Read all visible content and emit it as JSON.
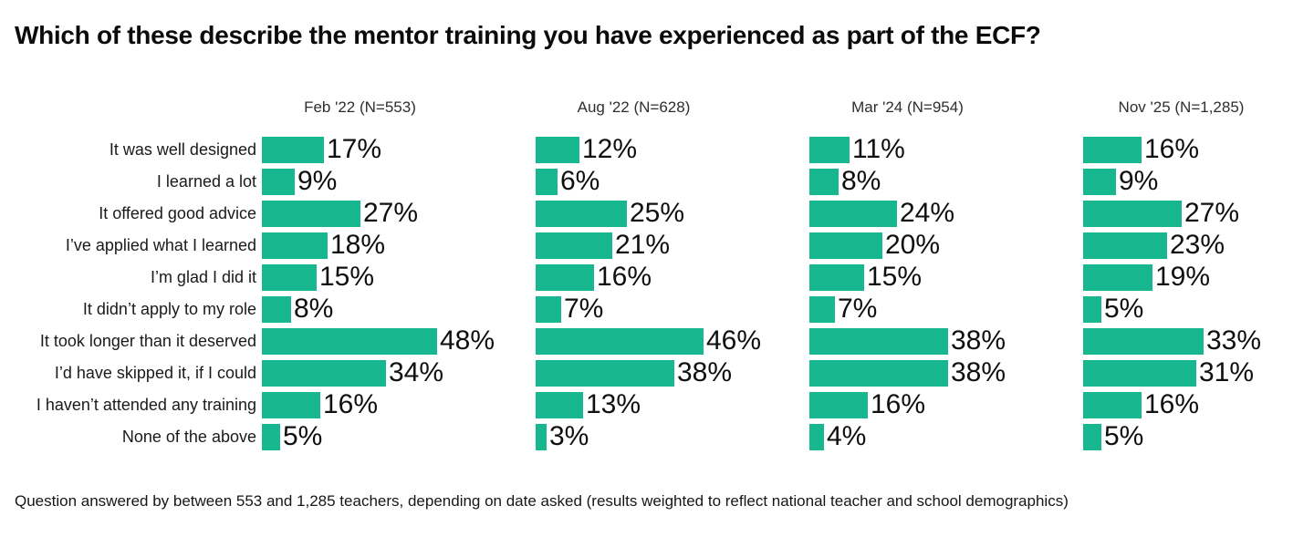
{
  "title": "Which of these describe the mentor training you have experienced as part of the ECF?",
  "footnote": "Question answered by between 553 and 1,285 teachers, depending on date asked (results weighted to reflect national teacher and school demographics)",
  "colors": {
    "bar": "#17B890",
    "title": "#0b0b0b",
    "row_label": "#1a1a1a",
    "series_header": "#2e2e2e",
    "value_label": "#0f0f0f"
  },
  "chart_data": {
    "type": "bar",
    "orientation": "horizontal",
    "title": "Which of these describe the mentor training you have experienced as part of the ECF?",
    "xlabel": "",
    "ylabel": "",
    "xlim": [
      0,
      50
    ],
    "grid": false,
    "legend_position": "column-headers-top",
    "value_suffix": "%",
    "categories": [
      "It was well designed",
      "I learned a lot",
      "It offered good advice",
      "I’ve applied what I learned",
      "I’m glad I did it",
      "It didn’t apply to my role",
      "It took longer than it deserved",
      "I’d have skipped it, if I could",
      "I haven’t attended any training",
      "None of the above"
    ],
    "series": [
      {
        "name": "Feb '22 (N=553)",
        "values": [
          17,
          9,
          27,
          18,
          15,
          8,
          48,
          34,
          16,
          5
        ]
      },
      {
        "name": "Aug '22 (N=628)",
        "values": [
          12,
          6,
          25,
          21,
          16,
          7,
          46,
          38,
          13,
          3
        ]
      },
      {
        "name": "Mar '24 (N=954)",
        "values": [
          11,
          8,
          24,
          20,
          15,
          7,
          38,
          38,
          16,
          4
        ]
      },
      {
        "name": "Nov '25 (N=1,285)",
        "values": [
          16,
          9,
          27,
          23,
          19,
          5,
          33,
          31,
          16,
          5
        ]
      }
    ]
  }
}
